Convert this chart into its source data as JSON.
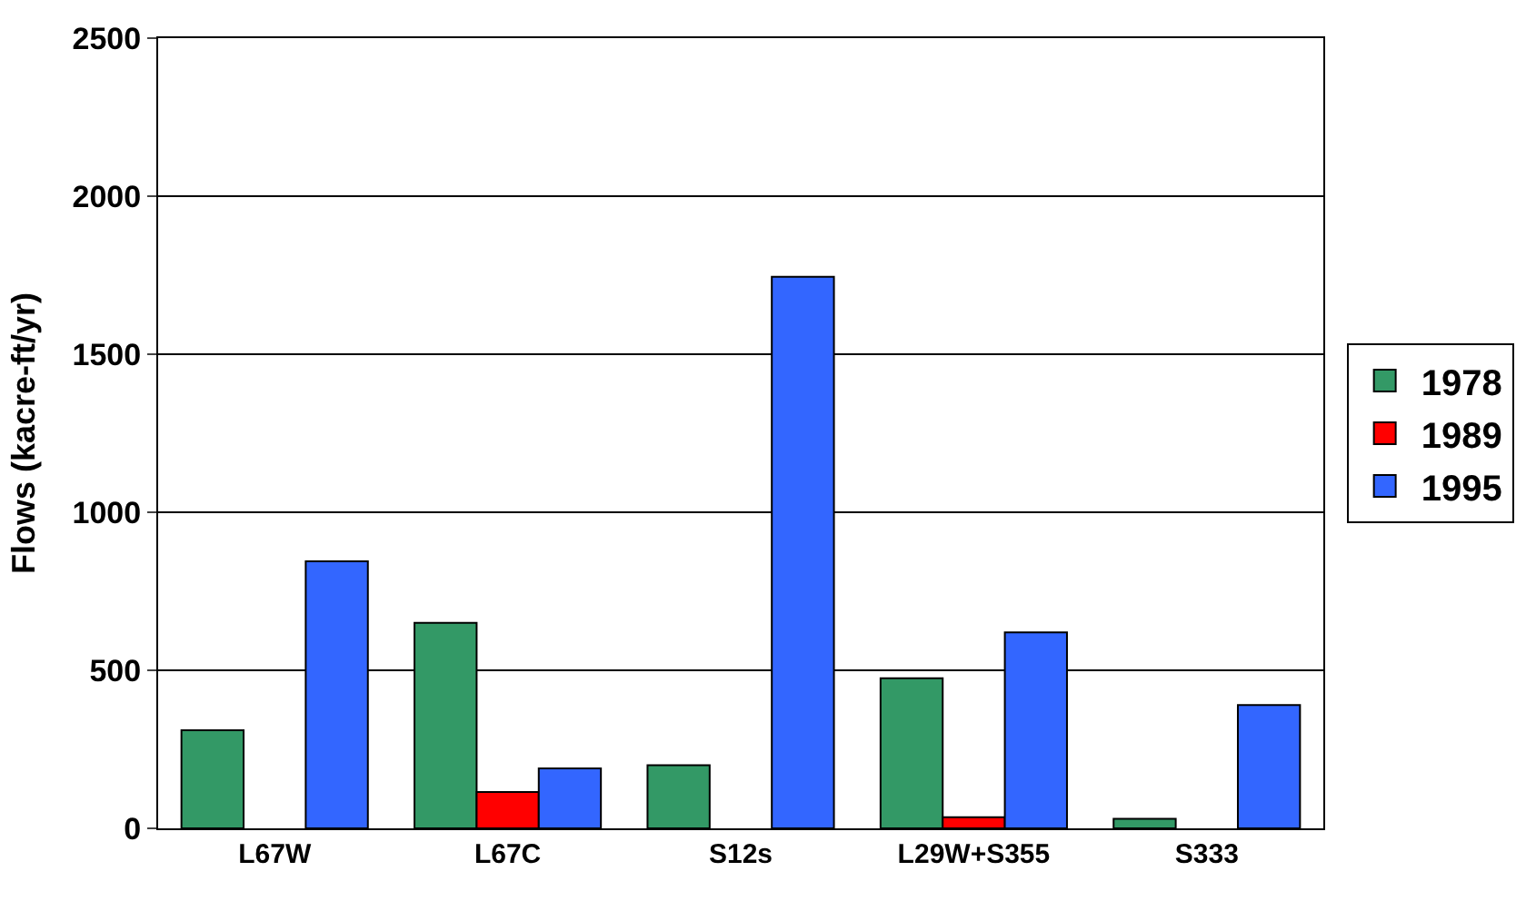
{
  "chart_data": {
    "type": "bar",
    "ylabel": "Flows (kacre-ft/yr)",
    "categories": [
      "L67W",
      "L67C",
      "S12s",
      "L29W+S355",
      "S333"
    ],
    "series": [
      {
        "name": "1978",
        "color": "#339966",
        "values": [
          310,
          650,
          200,
          475,
          30
        ]
      },
      {
        "name": "1989",
        "color": "#ff0000",
        "values": [
          null,
          115,
          null,
          35,
          null
        ]
      },
      {
        "name": "1995",
        "color": "#3366ff",
        "values": [
          845,
          190,
          1745,
          620,
          390
        ]
      }
    ],
    "ylim": [
      0,
      2500
    ],
    "yticks": [
      0,
      500,
      1000,
      1500,
      2000,
      2500
    ],
    "grid": "y",
    "legend": "right"
  }
}
